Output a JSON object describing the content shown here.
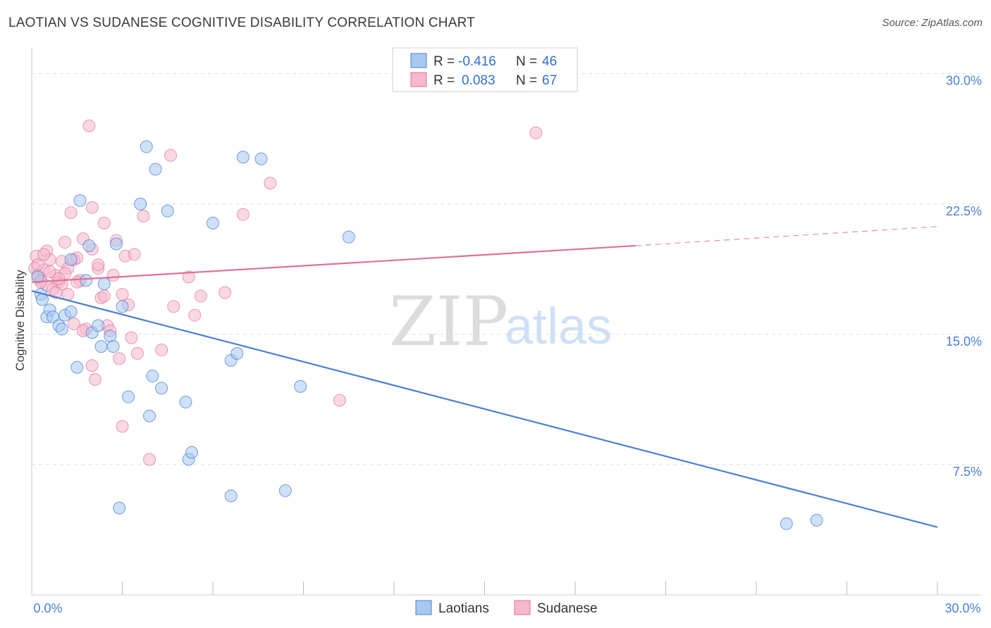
{
  "title": "LAOTIAN VS SUDANESE COGNITIVE DISABILITY CORRELATION CHART",
  "source": "Source: ZipAtlas.com",
  "watermark": {
    "a": "ZIP",
    "b": "atlas"
  },
  "colors": {
    "blue": "#4a7fd4",
    "blue_fill": "#a8c8f0",
    "pink": "#e0709a",
    "pink_fill": "#f5b8cc",
    "grid": "#dddddd"
  },
  "legend": {
    "rows": [
      {
        "r_label": "R =",
        "r_value": "-0.416",
        "n_label": "N =",
        "n_value": "46"
      },
      {
        "r_label": "R =",
        "r_value": "0.083",
        "n_label": "N =",
        "n_value": "67"
      }
    ]
  },
  "bottom_legend": [
    "Laotians",
    "Sudanese"
  ],
  "chart_data": {
    "type": "scatter",
    "title": "LAOTIAN VS SUDANESE COGNITIVE DISABILITY CORRELATION CHART",
    "xlabel": "",
    "ylabel": "Cognitive Disability",
    "xlim": [
      0,
      30
    ],
    "ylim": [
      0,
      31
    ],
    "x_tick_labels": [
      "0.0%",
      "30.0%"
    ],
    "y_ticks": [
      7.5,
      15.0,
      22.5,
      30.0
    ],
    "y_tick_labels": [
      "7.5%",
      "15.0%",
      "22.5%",
      "30.0%"
    ],
    "grid": true,
    "legend_placement": "top-center",
    "series": [
      {
        "name": "Laotians",
        "r": -0.416,
        "n": 46,
        "trend": {
          "x": [
            0.0,
            30.0
          ],
          "y": [
            17.5,
            3.9
          ]
        },
        "points": [
          [
            0.2,
            18.3
          ],
          [
            0.3,
            17.3
          ],
          [
            0.35,
            17.0
          ],
          [
            0.5,
            16.0
          ],
          [
            0.6,
            16.4
          ],
          [
            0.7,
            16.0
          ],
          [
            0.9,
            15.5
          ],
          [
            1.0,
            15.3
          ],
          [
            1.1,
            16.1
          ],
          [
            1.3,
            16.3
          ],
          [
            1.3,
            19.3
          ],
          [
            1.5,
            13.1
          ],
          [
            1.6,
            22.7
          ],
          [
            1.8,
            18.1
          ],
          [
            1.9,
            20.1
          ],
          [
            2.0,
            15.1
          ],
          [
            2.2,
            15.5
          ],
          [
            2.3,
            14.3
          ],
          [
            2.4,
            17.9
          ],
          [
            2.6,
            14.9
          ],
          [
            2.7,
            14.3
          ],
          [
            2.8,
            20.2
          ],
          [
            2.9,
            5.0
          ],
          [
            3.0,
            16.6
          ],
          [
            3.2,
            11.4
          ],
          [
            3.6,
            22.5
          ],
          [
            3.8,
            25.8
          ],
          [
            3.9,
            10.3
          ],
          [
            4.0,
            12.6
          ],
          [
            4.1,
            24.5
          ],
          [
            4.3,
            11.9
          ],
          [
            4.5,
            22.1
          ],
          [
            5.1,
            11.1
          ],
          [
            5.2,
            7.8
          ],
          [
            5.3,
            8.2
          ],
          [
            6.0,
            21.4
          ],
          [
            6.6,
            5.7
          ],
          [
            6.6,
            13.5
          ],
          [
            6.8,
            13.9
          ],
          [
            7.0,
            25.2
          ],
          [
            7.6,
            25.1
          ],
          [
            8.4,
            6.0
          ],
          [
            8.9,
            12.0
          ],
          [
            10.5,
            20.6
          ],
          [
            25.0,
            4.1
          ],
          [
            26.0,
            4.3
          ]
        ]
      },
      {
        "name": "Sudanese",
        "r": 0.083,
        "n": 67,
        "trend": {
          "x": [
            0.0,
            20.0
          ],
          "y": [
            18.0,
            20.1
          ]
        },
        "trend_dashed": {
          "x": [
            20.0,
            30.0
          ],
          "y": [
            20.1,
            21.2
          ]
        },
        "points": [
          [
            0.1,
            18.8
          ],
          [
            0.15,
            19.5
          ],
          [
            0.2,
            18.4
          ],
          [
            0.3,
            18.1
          ],
          [
            0.4,
            18.7
          ],
          [
            0.5,
            17.8
          ],
          [
            0.5,
            19.8
          ],
          [
            0.6,
            19.3
          ],
          [
            0.7,
            17.6
          ],
          [
            0.8,
            18.4
          ],
          [
            0.9,
            18.0
          ],
          [
            1.0,
            19.2
          ],
          [
            1.1,
            20.3
          ],
          [
            1.2,
            17.3
          ],
          [
            1.2,
            18.8
          ],
          [
            1.3,
            22.0
          ],
          [
            1.4,
            19.3
          ],
          [
            1.5,
            19.4
          ],
          [
            1.6,
            18.1
          ],
          [
            1.7,
            20.5
          ],
          [
            1.8,
            15.3
          ],
          [
            1.9,
            27.0
          ],
          [
            2.0,
            22.3
          ],
          [
            2.0,
            19.9
          ],
          [
            2.2,
            18.8
          ],
          [
            2.3,
            17.1
          ],
          [
            2.4,
            21.4
          ],
          [
            2.5,
            15.5
          ],
          [
            2.6,
            15.2
          ],
          [
            2.7,
            18.4
          ],
          [
            2.8,
            20.4
          ],
          [
            2.9,
            13.6
          ],
          [
            3.0,
            17.3
          ],
          [
            3.1,
            19.5
          ],
          [
            3.2,
            16.7
          ],
          [
            3.3,
            14.8
          ],
          [
            3.4,
            19.6
          ],
          [
            3.5,
            13.9
          ],
          [
            3.7,
            21.8
          ],
          [
            3.9,
            7.8
          ],
          [
            4.3,
            14.1
          ],
          [
            4.6,
            25.3
          ],
          [
            4.7,
            16.6
          ],
          [
            5.2,
            18.3
          ],
          [
            5.4,
            16.1
          ],
          [
            5.6,
            17.2
          ],
          [
            6.4,
            17.4
          ],
          [
            7.0,
            21.9
          ],
          [
            7.9,
            23.7
          ],
          [
            10.2,
            11.2
          ],
          [
            16.7,
            26.6
          ],
          [
            0.3,
            18.0
          ],
          [
            0.6,
            18.6
          ],
          [
            1.0,
            17.9
          ],
          [
            1.4,
            15.6
          ],
          [
            1.7,
            15.2
          ],
          [
            2.0,
            13.2
          ],
          [
            2.1,
            12.4
          ],
          [
            3.0,
            9.7
          ],
          [
            2.4,
            17.2
          ],
          [
            1.1,
            18.5
          ],
          [
            0.8,
            17.4
          ],
          [
            1.5,
            18.0
          ],
          [
            2.2,
            19.0
          ],
          [
            0.4,
            19.6
          ],
          [
            0.2,
            19.0
          ],
          [
            0.9,
            18.2
          ]
        ]
      }
    ]
  }
}
